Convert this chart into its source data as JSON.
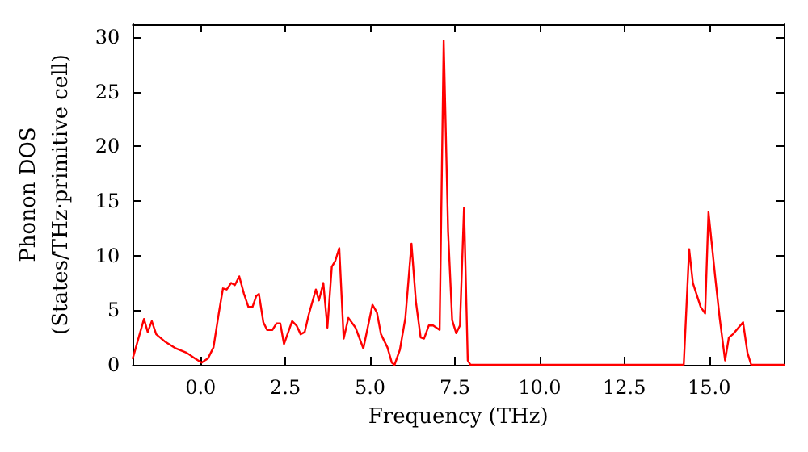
{
  "chart_data": {
    "type": "line",
    "xlabel": "Frequency (THz)",
    "ylabel": "Phonon DOS\n(States/THz·primitive cell)",
    "xlim": [
      -2,
      17.2
    ],
    "ylim": [
      0,
      31.2
    ],
    "xticks": [
      {
        "value": 0,
        "label": "0.0"
      },
      {
        "value": 2.5,
        "label": "2.5"
      },
      {
        "value": 5,
        "label": "5.0"
      },
      {
        "value": 7.5,
        "label": "7.5"
      },
      {
        "value": 10,
        "label": "10.0"
      },
      {
        "value": 12.5,
        "label": "12.5"
      },
      {
        "value": 15,
        "label": "15.0"
      }
    ],
    "yticks": [
      0,
      5,
      10,
      15,
      20,
      25,
      30
    ],
    "grid": false,
    "marker": "none",
    "line_style": "solid",
    "series": [
      {
        "color": "#ff0000",
        "x": [
          -2.0,
          -1.67,
          -1.56,
          -1.44,
          -1.31,
          -1.04,
          -0.73,
          -0.41,
          -0.17,
          0.03,
          0.22,
          0.38,
          0.54,
          0.66,
          0.77,
          0.9,
          1.01,
          1.14,
          1.28,
          1.41,
          1.53,
          1.64,
          1.72,
          1.85,
          1.96,
          2.12,
          2.24,
          2.35,
          2.46,
          2.7,
          2.83,
          2.95,
          3.07,
          3.19,
          3.4,
          3.49,
          3.62,
          3.74,
          3.87,
          3.97,
          4.09,
          4.22,
          4.36,
          4.57,
          4.8,
          5.07,
          5.2,
          5.32,
          5.51,
          5.64,
          5.72,
          5.88,
          6.04,
          6.22,
          6.35,
          6.49,
          6.59,
          6.73,
          6.86,
          7.05,
          7.17,
          7.3,
          7.42,
          7.54,
          7.65,
          7.77,
          7.88,
          7.96,
          14.25,
          14.41,
          14.52,
          14.75,
          14.88,
          14.98,
          15.18,
          15.31,
          15.47,
          15.58,
          15.7,
          16.0,
          16.13,
          16.24,
          17.2
        ],
        "values": [
          0.6,
          4.2,
          3.0,
          4.0,
          2.8,
          2.1,
          1.5,
          1.1,
          0.6,
          0.2,
          0.6,
          1.6,
          4.8,
          7.0,
          6.9,
          7.5,
          7.3,
          8.1,
          6.5,
          5.3,
          5.3,
          6.3,
          6.5,
          3.9,
          3.2,
          3.2,
          3.8,
          3.8,
          1.9,
          4.0,
          3.6,
          2.8,
          3.0,
          4.6,
          6.9,
          5.9,
          7.5,
          3.4,
          9.0,
          9.5,
          10.7,
          2.4,
          4.3,
          3.4,
          1.5,
          5.5,
          4.8,
          2.8,
          1.6,
          0.2,
          0,
          1.4,
          4.3,
          11.1,
          5.8,
          2.5,
          2.4,
          3.6,
          3.6,
          3.2,
          29.7,
          12.2,
          4.1,
          2.9,
          3.6,
          14.4,
          0.4,
          0,
          0,
          10.6,
          7.5,
          5.3,
          4.7,
          14.0,
          8.0,
          4.3,
          0.4,
          2.5,
          2.8,
          3.9,
          1.1,
          0,
          0
        ]
      }
    ]
  }
}
